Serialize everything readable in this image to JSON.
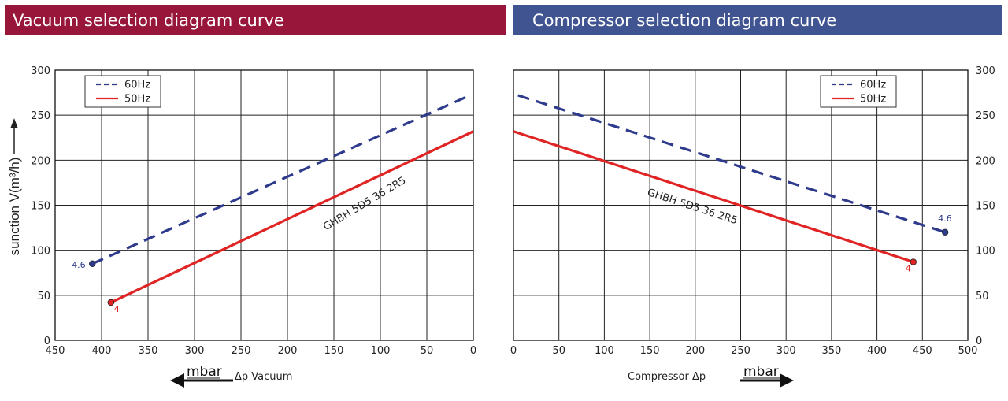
{
  "banners": {
    "left": "Vacuum selection diagram curve",
    "right": "Compressor selection diagram curve"
  },
  "colors": {
    "red_banner": "#98163a",
    "blue_banner": "#3f5491",
    "line_60hz": "#2e3a8c",
    "line_50hz": "#e02424"
  },
  "y_axis_label": "sunction V(m³/h)",
  "chart_data": [
    {
      "type": "line",
      "xlim": [
        450,
        0
      ],
      "ylim": [
        0,
        300
      ],
      "x_ticks": [
        450,
        400,
        350,
        300,
        250,
        200,
        150,
        100,
        50,
        0
      ],
      "y_ticks": [
        0,
        50,
        100,
        150,
        200,
        250,
        300
      ],
      "xlabel_unit": "mbar",
      "xlabel_text": "Δp  Vacuum",
      "annotation": "GHBH  5D5 36 2R5",
      "legend": "top-left",
      "series": [
        {
          "name": "60Hz",
          "x": [
            410,
            8
          ],
          "y": [
            85,
            270
          ],
          "end_label": "4.6"
        },
        {
          "name": "50Hz",
          "x": [
            390,
            0
          ],
          "y": [
            42,
            232
          ],
          "end_label": "4"
        }
      ]
    },
    {
      "type": "line",
      "xlim": [
        0,
        500
      ],
      "ylim": [
        0,
        300
      ],
      "x_ticks": [
        0,
        50,
        100,
        150,
        200,
        250,
        300,
        350,
        400,
        450,
        500
      ],
      "y_ticks": [
        0,
        50,
        100,
        150,
        200,
        250,
        300
      ],
      "xlabel_text": "Compressor  Δp",
      "xlabel_unit": "mbar",
      "annotation": "GHBH  5D5 36 2R5",
      "legend": "top-right",
      "series": [
        {
          "name": "60Hz",
          "x": [
            5,
            475
          ],
          "y": [
            272,
            120
          ],
          "end_label": "4.6"
        },
        {
          "name": "50Hz",
          "x": [
            0,
            440
          ],
          "y": [
            232,
            87
          ],
          "end_label": "4"
        }
      ]
    }
  ]
}
